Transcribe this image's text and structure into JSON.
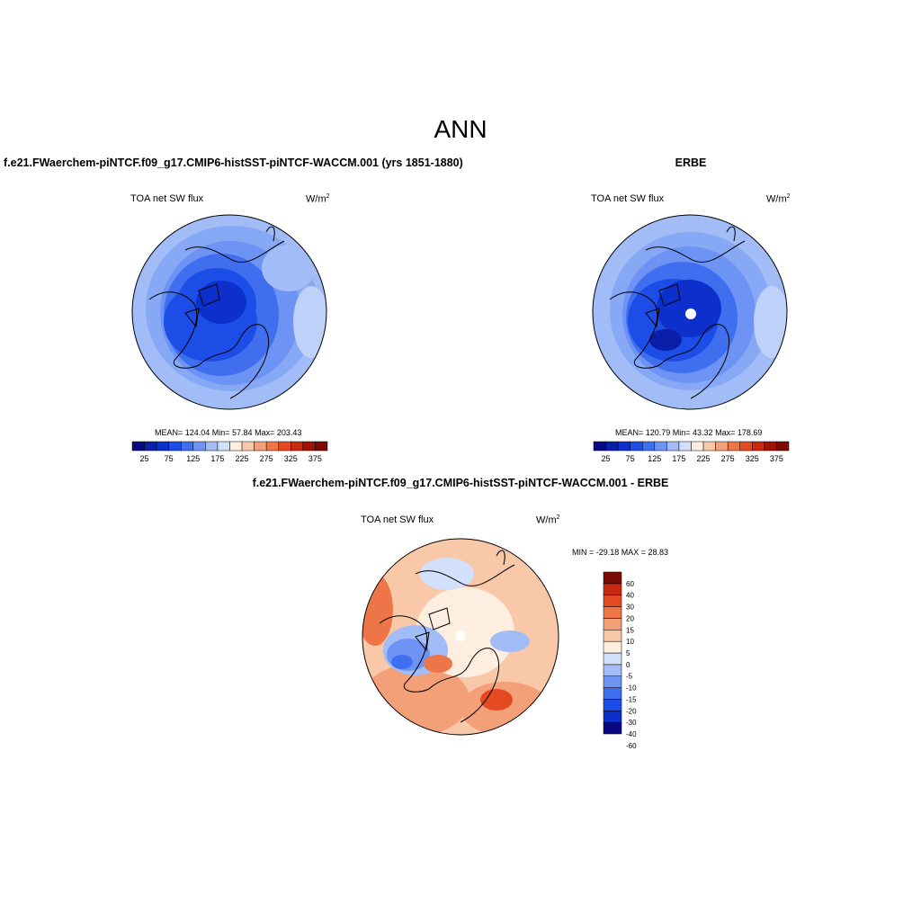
{
  "page": {
    "main_title": "ANN",
    "panel_title_model": "f.e21.FWaerchem-piNTCF.f09_g17.CMIP6-histSST-piNTCF-WACCM.001 (yrs 1851-1880)",
    "panel_title_obs": "ERBE",
    "panel_title_diff": "f.e21.FWaerchem-piNTCF.f09_g17.CMIP6-histSST-piNTCF-WACCM.001 - ERBE"
  },
  "panels": {
    "model": {
      "variable": "TOA net SW flux",
      "units_base": "W/m",
      "units_exp": "2",
      "stats": "MEAN= 124.04  Min=  57.84  Max= 203.43"
    },
    "obs": {
      "variable": "TOA net SW flux",
      "units_base": "W/m",
      "units_exp": "2",
      "stats": "MEAN= 120.79  Min=  43.32  Max= 178.69"
    },
    "diff": {
      "variable": "TOA net SW flux",
      "units_base": "W/m",
      "units_exp": "2",
      "stats": "MIN = -29.18 MAX =  28.83"
    }
  },
  "colorbars": {
    "field": {
      "colors": [
        "#0a0a80",
        "#0a1fa8",
        "#0d2fcc",
        "#1c4de6",
        "#3f6fef",
        "#6d94f4",
        "#a2bcf7",
        "#d2e0fb",
        "#fdeee0",
        "#f8c8a8",
        "#f39f78",
        "#ee7548",
        "#e44a22",
        "#c72a10",
        "#a01205",
        "#7a0a02"
      ],
      "labels": [
        "25",
        "75",
        "125",
        "175",
        "225",
        "275",
        "325",
        "375"
      ]
    },
    "diff": {
      "colors": [
        "#0a0a80",
        "#0d2fcc",
        "#1c4de6",
        "#3f6fef",
        "#6d94f4",
        "#a2bcf7",
        "#d2e0fb",
        "#fdeee0",
        "#f8c8a8",
        "#f39f78",
        "#ee7548",
        "#e44a22",
        "#c72a10",
        "#7a0a02"
      ],
      "labels": [
        "60",
        "40",
        "30",
        "20",
        "15",
        "10",
        "5",
        "0",
        "-5",
        "-10",
        "-15",
        "-20",
        "-30",
        "-40",
        "-60"
      ]
    }
  }
}
